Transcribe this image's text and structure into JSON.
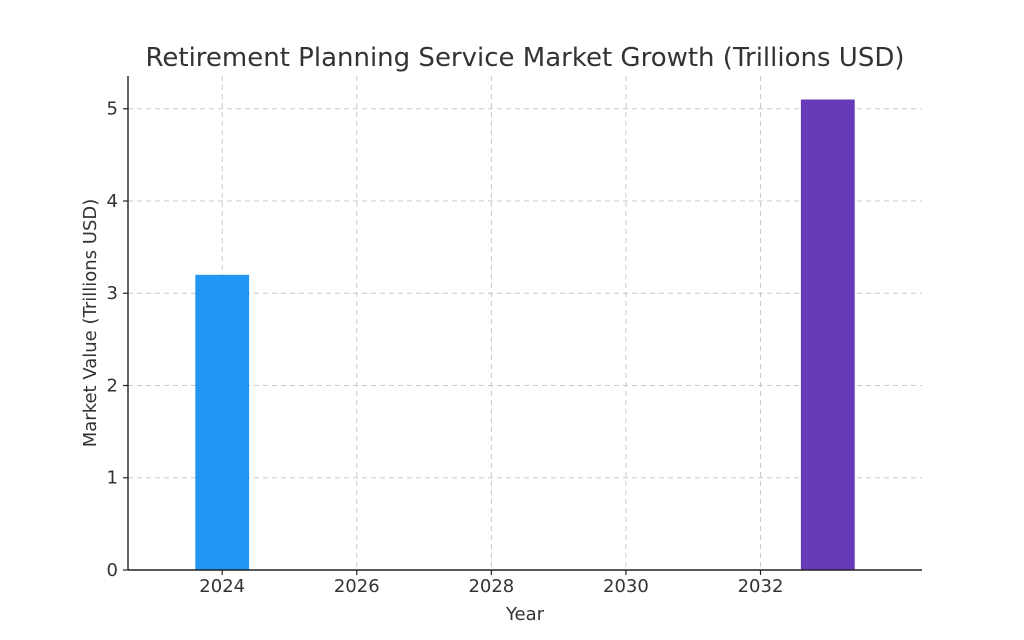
{
  "chart_data": {
    "type": "bar",
    "title": "Retirement Planning Service Market Growth (Trillions USD)",
    "xlabel": "Year",
    "ylabel": "Market Value (Trillions USD)",
    "x": [
      2024,
      2033
    ],
    "values": [
      3.2,
      5.1
    ],
    "bar_colors": [
      "#2196f3",
      "#673ab7"
    ],
    "bar_width_years": 0.8,
    "xlim": [
      2022.6,
      2034.4
    ],
    "ylim": [
      0,
      5.355
    ],
    "xticks": [
      2024,
      2026,
      2028,
      2030,
      2032
    ],
    "xtick_labels": [
      "2024",
      "2026",
      "2028",
      "2030",
      "2032"
    ],
    "yticks": [
      0,
      1,
      2,
      3,
      4,
      5
    ],
    "ytick_labels": [
      "0",
      "1",
      "2",
      "3",
      "4",
      "5"
    ],
    "grid": true,
    "legend": "none"
  }
}
